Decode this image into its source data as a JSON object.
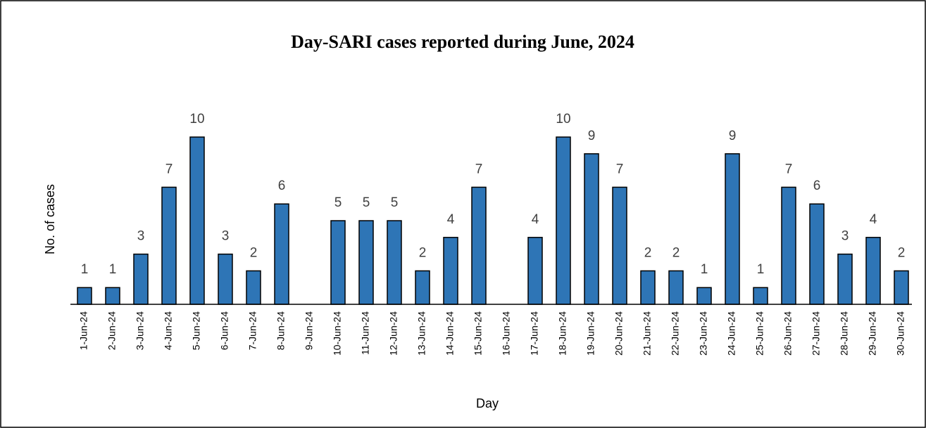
{
  "chart_data": {
    "type": "bar",
    "title": "Day-SARI cases reported during June, 2024",
    "x_label": "Day",
    "y_label": "No. of cases",
    "categories": [
      "1-Jun-24",
      "2-Jun-24",
      "3-Jun-24",
      "4-Jun-24",
      "5-Jun-24",
      "6-Jun-24",
      "7-Jun-24",
      "8-Jun-24",
      "9-Jun-24",
      "10-Jun-24",
      "11-Jun-24",
      "12-Jun-24",
      "13-Jun-24",
      "14-Jun-24",
      "15-Jun-24",
      "16-Jun-24",
      "17-Jun-24",
      "18-Jun-24",
      "19-Jun-24",
      "20-Jun-24",
      "21-Jun-24",
      "22-Jun-24",
      "23-Jun-24",
      "24-Jun-24",
      "25-Jun-24",
      "26-Jun-24",
      "27-Jun-24",
      "28-Jun-24",
      "29-Jun-24",
      "30-Jun-24"
    ],
    "values": [
      1,
      1,
      3,
      7,
      10,
      3,
      2,
      6,
      null,
      5,
      5,
      5,
      2,
      4,
      7,
      null,
      4,
      10,
      9,
      7,
      2,
      2,
      1,
      9,
      1,
      7,
      6,
      3,
      4,
      2
    ],
    "color": "#2e75b6",
    "ylim": [
      0,
      12
    ]
  }
}
